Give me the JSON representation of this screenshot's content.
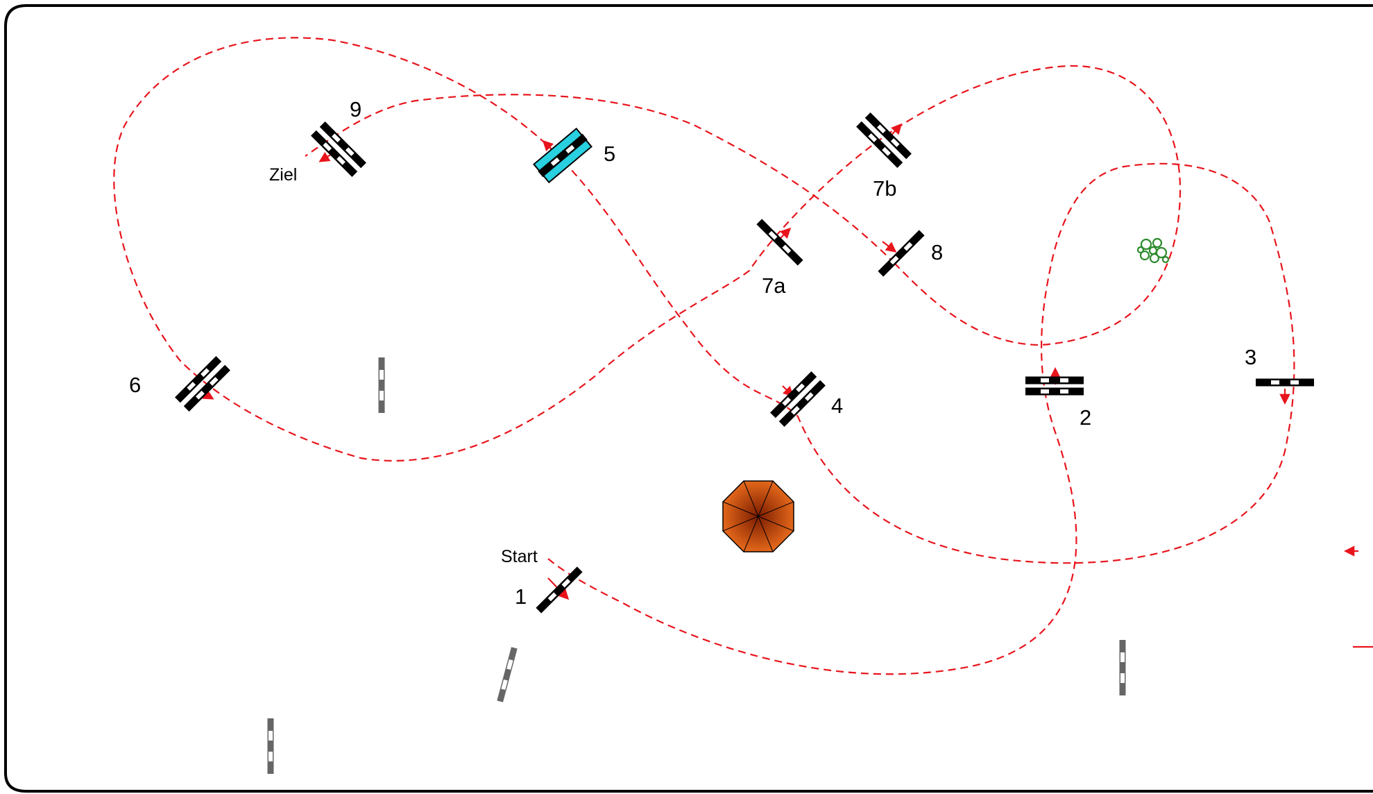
{
  "course": {
    "start_label": "Start",
    "finish_label": "Ziel",
    "obstacles": [
      {
        "id": "1",
        "type": "vertical"
      },
      {
        "id": "2",
        "type": "oxer"
      },
      {
        "id": "3",
        "type": "vertical"
      },
      {
        "id": "4",
        "type": "oxer"
      },
      {
        "id": "5",
        "type": "water-jump"
      },
      {
        "id": "6",
        "type": "oxer"
      },
      {
        "id": "7a",
        "type": "vertical"
      },
      {
        "id": "7b",
        "type": "oxer"
      },
      {
        "id": "8",
        "type": "vertical"
      },
      {
        "id": "9",
        "type": "oxer"
      }
    ],
    "decorations": [
      "umbrella-icon",
      "shrub-icon",
      "spare-rail-icon"
    ]
  },
  "colors": {
    "route": "#e8141c",
    "frame": "#000000",
    "water": "#28d0e0",
    "umbrella": "#d65a10",
    "shrub": "#2d8a2d",
    "spare_rail": "#666666"
  }
}
